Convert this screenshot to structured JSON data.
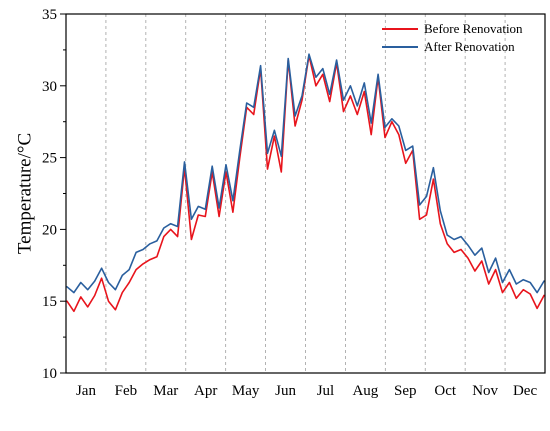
{
  "chart_data": {
    "type": "line",
    "ylabel": "Temperature/°C",
    "ylim": [
      10,
      35
    ],
    "yticks": [
      10,
      15,
      20,
      25,
      30,
      35
    ],
    "months": [
      "Jan",
      "Feb",
      "Mar",
      "Apr",
      "May",
      "Jun",
      "Jul",
      "Aug",
      "Sep",
      "Oct",
      "Nov",
      "Dec"
    ],
    "grid": "vertical dashed month separators",
    "legend_position": "top-right",
    "series": [
      {
        "name": "Before Renovation",
        "color": "#e8141c",
        "values": [
          15.0,
          14.3,
          15.3,
          14.6,
          15.4,
          16.6,
          15.0,
          14.4,
          15.6,
          16.3,
          17.2,
          17.6,
          17.9,
          18.1,
          19.5,
          20.0,
          19.5,
          24.3,
          19.3,
          21.0,
          20.9,
          24.0,
          20.9,
          24.0,
          21.2,
          25.0,
          28.5,
          28.0,
          31.2,
          24.2,
          26.5,
          24.0,
          31.8,
          27.2,
          29.0,
          32.1,
          30.0,
          30.8,
          28.9,
          31.6,
          28.2,
          29.3,
          28.0,
          29.6,
          26.6,
          30.6,
          26.4,
          27.5,
          26.6,
          24.6,
          25.5,
          20.7,
          21.0,
          23.5,
          20.4,
          19.0,
          18.4,
          18.6,
          18.0,
          17.1,
          17.8,
          16.2,
          17.2,
          15.6,
          16.3,
          15.2,
          15.8,
          15.5,
          14.5,
          15.4
        ]
      },
      {
        "name": "After Renovation",
        "color": "#2a5f9e",
        "values": [
          16.0,
          15.6,
          16.3,
          15.8,
          16.4,
          17.3,
          16.3,
          15.8,
          16.8,
          17.2,
          18.4,
          18.6,
          19.0,
          19.2,
          20.1,
          20.4,
          20.2,
          24.7,
          20.7,
          21.6,
          21.4,
          24.4,
          21.5,
          24.5,
          22.0,
          25.5,
          28.8,
          28.5,
          31.4,
          25.3,
          26.9,
          25.1,
          31.9,
          27.9,
          29.3,
          32.2,
          30.6,
          31.2,
          29.4,
          31.8,
          29.0,
          30.0,
          28.6,
          30.2,
          27.4,
          30.8,
          27.1,
          27.7,
          27.2,
          25.5,
          25.8,
          21.7,
          22.3,
          24.3,
          21.3,
          19.6,
          19.3,
          19.5,
          18.9,
          18.2,
          18.7,
          17.0,
          18.0,
          16.3,
          17.2,
          16.2,
          16.5,
          16.3,
          15.6,
          16.4
        ]
      }
    ]
  }
}
